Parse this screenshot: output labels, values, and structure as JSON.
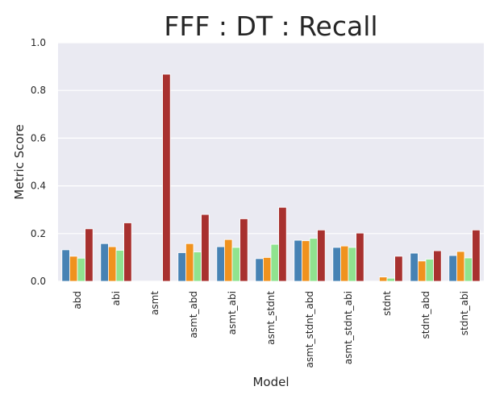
{
  "chart_data": {
    "type": "bar",
    "title": "FFF : DT : Recall",
    "xlabel": "Model",
    "ylabel": "Metric Score",
    "ylim": [
      0.0,
      1.0
    ],
    "yticks": [
      "0.0",
      "0.2",
      "0.4",
      "0.6",
      "0.8",
      "1.0"
    ],
    "grid": true,
    "legend": "none",
    "categories": [
      "abd",
      "abi",
      "asmt",
      "asmt_abd",
      "asmt_abi",
      "asmt_stdnt",
      "asmt_stdnt_abd",
      "asmt_stdnt_abi",
      "stdnt",
      "stdnt_abd",
      "stdnt_abi"
    ],
    "series": [
      {
        "color": "#4682b4",
        "values": [
          0.132,
          0.158,
          0.0,
          0.12,
          0.145,
          0.095,
          0.172,
          0.142,
          0.0,
          0.118,
          0.108
        ]
      },
      {
        "color": "#f0921e",
        "values": [
          0.105,
          0.145,
          0.0,
          0.158,
          0.175,
          0.1,
          0.17,
          0.148,
          0.018,
          0.085,
          0.125
        ]
      },
      {
        "color": "#90e38f",
        "values": [
          0.097,
          0.13,
          0.0,
          0.123,
          0.142,
          0.155,
          0.18,
          0.142,
          0.013,
          0.093,
          0.098
        ]
      },
      {
        "color": "#a8312f",
        "values": [
          0.22,
          0.245,
          0.868,
          0.28,
          0.262,
          0.31,
          0.215,
          0.202,
          0.105,
          0.128,
          0.215
        ]
      }
    ],
    "colors": {
      "plot_background": "#eaeaf2",
      "grid": "#ffffff",
      "text": "#262626"
    }
  }
}
